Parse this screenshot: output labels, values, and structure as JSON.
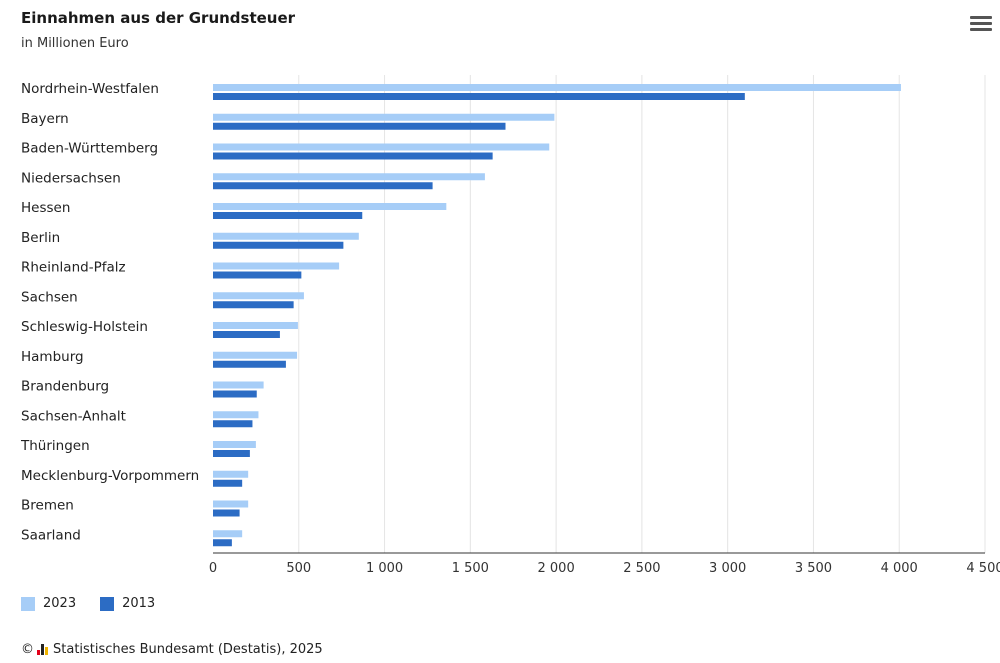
{
  "header": {
    "title": "Einnahmen aus der Grundsteuer",
    "subtitle": "in Millionen Euro"
  },
  "menu_icon": "hamburger-menu-icon",
  "colors": {
    "2023": "#a6cdf7",
    "2013": "#2c6cc4",
    "grid": "#e4e4e4",
    "axis": "#333333"
  },
  "chart_data": {
    "type": "bar",
    "orientation": "horizontal",
    "title": "Einnahmen aus der Grundsteuer",
    "subtitle": "in Millionen Euro",
    "categories": [
      "Nordrhein-Westfalen",
      "Bayern",
      "Baden-Württemberg",
      "Niedersachsen",
      "Hessen",
      "Berlin",
      "Rheinland-Pfalz",
      "Sachsen",
      "Schleswig-Holstein",
      "Hamburg",
      "Brandenburg",
      "Sachsen-Anhalt",
      "Thüringen",
      "Mecklenburg-Vorpommern",
      "Bremen",
      "Saarland"
    ],
    "series": [
      {
        "name": "2023",
        "values": [
          4010,
          1990,
          1960,
          1585,
          1360,
          850,
          735,
          530,
          495,
          490,
          295,
          265,
          250,
          205,
          205,
          170
        ]
      },
      {
        "name": "2013",
        "values": [
          3100,
          1705,
          1630,
          1280,
          870,
          760,
          515,
          470,
          390,
          425,
          255,
          230,
          215,
          170,
          155,
          110
        ]
      }
    ],
    "xlim": [
      0,
      4500
    ],
    "ticks": [
      "0",
      "500",
      "1 000",
      "1 500",
      "2 000",
      "2 500",
      "3 000",
      "3 500",
      "4 000",
      "4 500"
    ],
    "tick_values": [
      0,
      500,
      1000,
      1500,
      2000,
      2500,
      3000,
      3500,
      4000,
      4500
    ],
    "grid": true,
    "legend_position": "bottom-left"
  },
  "legend": [
    {
      "label": "2023"
    },
    {
      "label": "2013"
    }
  ],
  "footer": {
    "copyright": "©",
    "source": "Statistisches Bundesamt (Destatis), 2025"
  }
}
